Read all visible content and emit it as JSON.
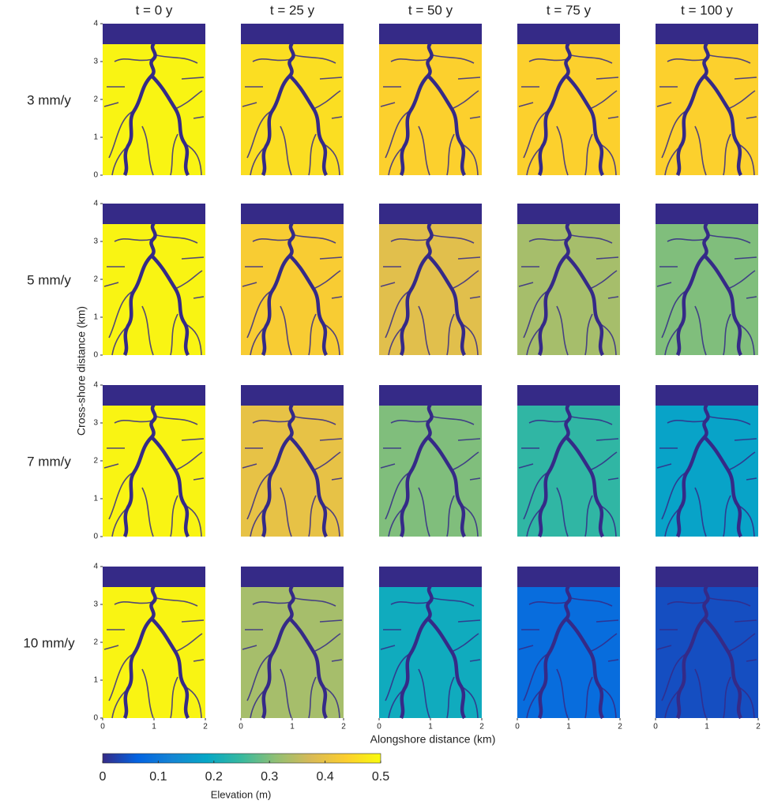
{
  "chart_data": {
    "type": "image-grid",
    "columns": [
      "t = 0 y",
      "t = 25 y",
      "t = 50 y",
      "t = 75 y",
      "t = 100 y"
    ],
    "rows": [
      "3 mm/y",
      "5 mm/y",
      "7 mm/y",
      "10 mm/y"
    ],
    "values": [
      [
        0.49,
        0.46,
        0.44,
        0.44,
        0.44
      ],
      [
        0.49,
        0.43,
        0.39,
        0.33,
        0.3
      ],
      [
        0.49,
        0.4,
        0.3,
        0.24,
        0.18
      ],
      [
        0.49,
        0.33,
        0.2,
        0.08,
        0.04
      ]
    ],
    "xlabel": "Alongshore distance (km)",
    "ylabel": "Cross-shore distance (km)",
    "xlim": [
      0,
      2
    ],
    "xticks": [
      0,
      1,
      2
    ],
    "ylim": [
      0,
      4
    ],
    "yticks": [
      0,
      1,
      2,
      3,
      4
    ],
    "colorbar": {
      "label": "Elevation (m)",
      "lim": [
        0,
        0.5
      ],
      "ticks": [
        0,
        0.1,
        0.2,
        0.3,
        0.4,
        0.5
      ],
      "colormap": [
        "#352a87",
        "#0363e1",
        "#1485d4",
        "#06a7c6",
        "#38b99e",
        "#92bf73",
        "#d9ba56",
        "#fcce2e",
        "#f9fb0e"
      ]
    }
  }
}
